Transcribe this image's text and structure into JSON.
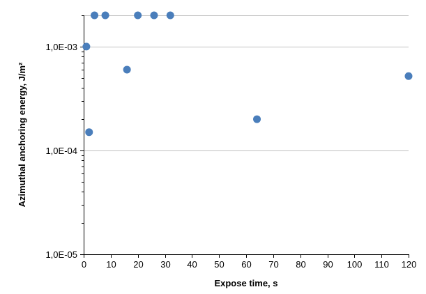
{
  "chart_data": {
    "type": "scatter",
    "title": "",
    "xlabel": "Expose time, s",
    "ylabel": "Azimuthal anchoring energy, J/m²",
    "xlim": [
      0,
      120
    ],
    "ylim": [
      1e-05,
      0.002
    ],
    "y_scale": "log",
    "x_ticks": [
      0,
      10,
      20,
      30,
      40,
      50,
      60,
      70,
      80,
      90,
      100,
      110,
      120
    ],
    "x_tick_labels": [
      "0",
      "10",
      "20",
      "30",
      "40",
      "50",
      "60",
      "70",
      "80",
      "90",
      "100",
      "110",
      "120"
    ],
    "y_ticks": [
      1e-05,
      0.0001,
      0.001
    ],
    "y_tick_labels": [
      "1,0E-05",
      "1,0E-04",
      "1,0E-03"
    ],
    "grid": "horizontal major lines",
    "legend": "none",
    "series": [
      {
        "color": "#4a7ebb",
        "points": [
          {
            "x": 1,
            "y": 0.001
          },
          {
            "x": 2,
            "y": 0.00015
          },
          {
            "x": 4,
            "y": 0.002
          },
          {
            "x": 8,
            "y": 0.002
          },
          {
            "x": 16,
            "y": 0.0006
          },
          {
            "x": 20,
            "y": 0.002
          },
          {
            "x": 26,
            "y": 0.002
          },
          {
            "x": 32,
            "y": 0.002
          },
          {
            "x": 64,
            "y": 0.0002
          },
          {
            "x": 120,
            "y": 0.00052
          }
        ]
      }
    ]
  }
}
